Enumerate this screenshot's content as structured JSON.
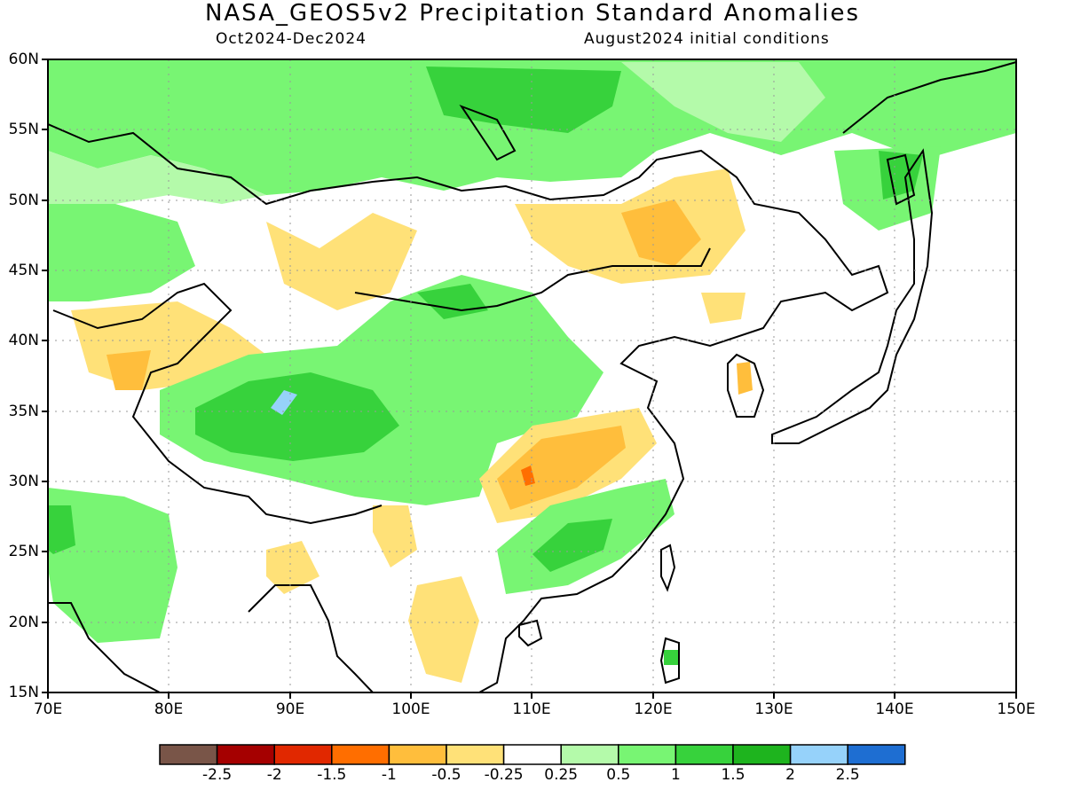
{
  "title": "NASA_GEOS5v2 Precipitation Standard Anomalies",
  "period": "Oct2024-Dec2024",
  "init": "August2024 initial conditions",
  "axes": {
    "x_ticks": [
      "70E",
      "80E",
      "90E",
      "100E",
      "110E",
      "120E",
      "130E",
      "140E",
      "150E"
    ],
    "y_ticks": [
      "60N",
      "55N",
      "50N",
      "45N",
      "40N",
      "35N",
      "30N",
      "25N",
      "20N",
      "15N"
    ],
    "lon_range": [
      70,
      150
    ],
    "lat_range": [
      15,
      60
    ],
    "grid": "dotted"
  },
  "colors": {
    "c1": "#795548",
    "c2": "#a50000",
    "c3": "#e12800",
    "c4": "#ff6e00",
    "c5": "#ffbe3c",
    "c6": "#ffe178",
    "c7": "#ffffff",
    "c8": "#b4faaa",
    "c9": "#78f573",
    "c10": "#37d23c",
    "c11": "#1eb41e",
    "c12": "#96d2fa",
    "c13": "#1e6ed2"
  },
  "colorbar": {
    "colors": [
      "#795548",
      "#a50000",
      "#e12800",
      "#ff6e00",
      "#ffbe3c",
      "#ffe178",
      "#ffffff",
      "#b4faaa",
      "#78f573",
      "#37d23c",
      "#1eb41e",
      "#96d2fa",
      "#1e6ed2"
    ],
    "labels": [
      "-2.5",
      "-2",
      "-1.5",
      "-1",
      "-0.5",
      "-0.25",
      "0.25",
      "0.5",
      "1",
      "1.5",
      "2",
      "2.5"
    ]
  }
}
